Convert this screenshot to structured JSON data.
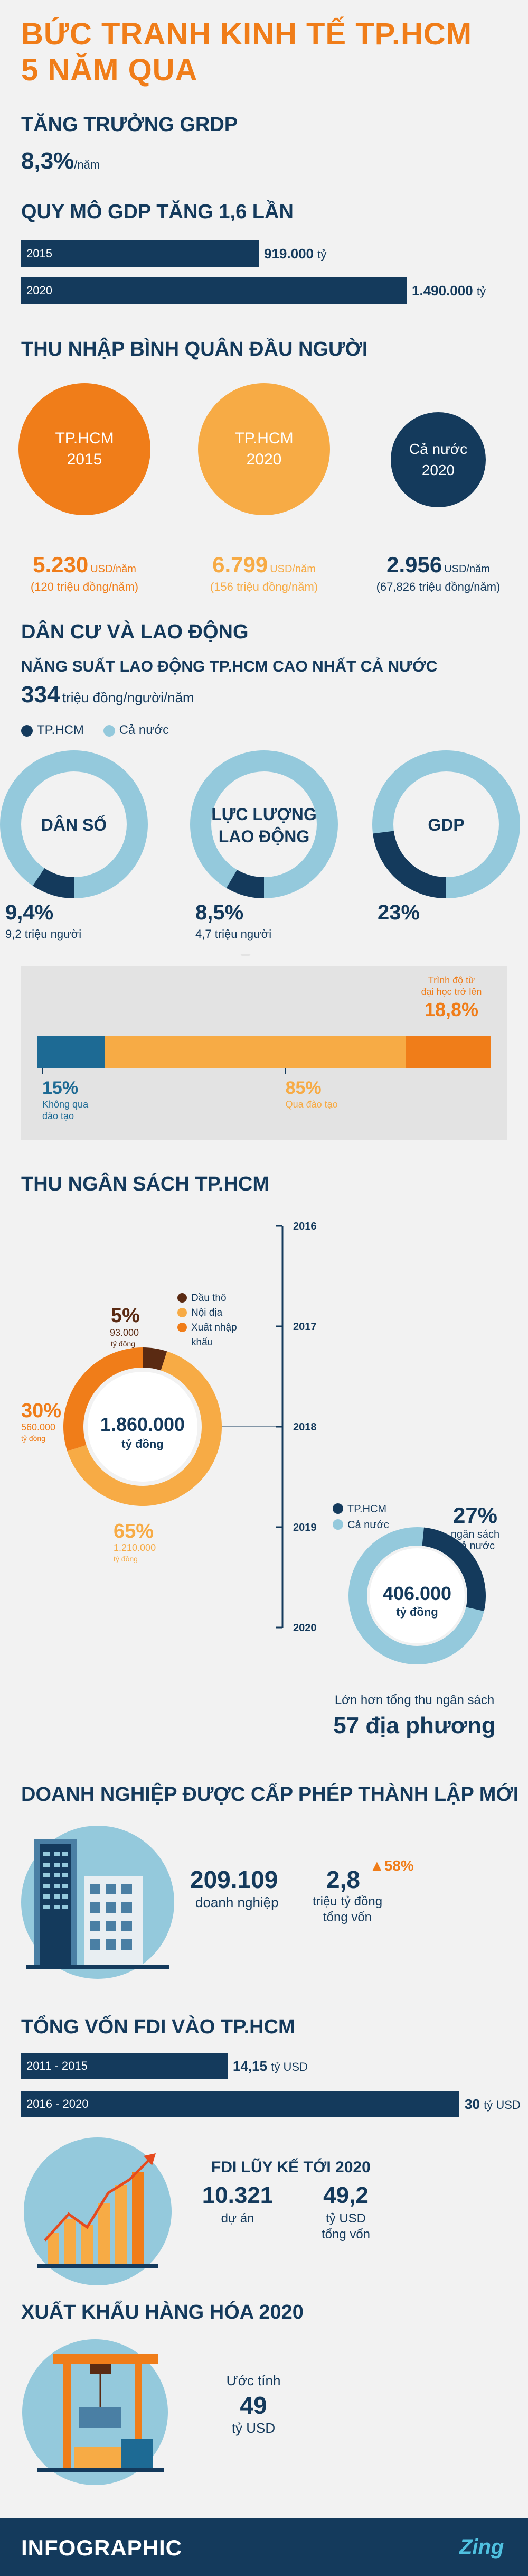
{
  "title_line1": "BỨC TRANH KINH TẾ TP.HCM",
  "title_line2": "5 NĂM QUA",
  "grdp": {
    "heading": "TĂNG TRƯỞNG GRDP",
    "value": "8,3%",
    "unit": "/năm"
  },
  "gdp_scale": {
    "heading": "QUY MÔ GDP TĂNG 1,6 LẦN",
    "chart_data": {
      "type": "bar",
      "orientation": "horizontal",
      "categories": [
        "2015",
        "2020"
      ],
      "values": [
        919000,
        1490000
      ],
      "value_labels": [
        "919.000",
        "1.490.000"
      ],
      "unit": "tỷ"
    }
  },
  "income": {
    "heading": "THU NHẬP BÌNH QUÂN ĐẦU NGƯỜI",
    "items": [
      {
        "label1": "TP.HCM",
        "label2": "2015",
        "value": "5.230",
        "unit": "USD/năm",
        "sub": "(120 triệu đồng/năm)",
        "color": "#f07d19",
        "value_color": "#f07d19"
      },
      {
        "label1": "TP.HCM",
        "label2": "2020",
        "value": "6.799",
        "unit": "USD/năm",
        "sub": "(156 triệu đồng/năm)",
        "color": "#f7ab45",
        "value_color": "#f7ab45"
      },
      {
        "label1": "Cả nước",
        "label2": "2020",
        "value": "2.956",
        "unit": "USD/năm",
        "sub": "(67,826 triệu đồng/năm)",
        "color": "#143a5c",
        "value_color": "#143a5c"
      }
    ]
  },
  "labor": {
    "heading": "DÂN CƯ VÀ LAO ĐỘNG",
    "subheading": "NĂNG SUẤT LAO ĐỘNG TP.HCM CAO NHẤT CẢ NƯỚC",
    "productivity_value": "334",
    "productivity_unit": "triệu đồng/người/năm",
    "legend_hcm": "TP.HCM",
    "legend_nation": "Cả nước",
    "colors": {
      "hcm": "#143a5c",
      "nation": "#94c9dc"
    },
    "chart_data": {
      "type": "pie",
      "charts": [
        {
          "label1": "DÂN SỐ",
          "label2": "",
          "hcm_share": 9.4,
          "value": "9,4%",
          "sub": "9,2 triệu người"
        },
        {
          "label1": "LỰC LƯỢNG",
          "label2": "LAO ĐỘNG",
          "hcm_share": 8.5,
          "value": "8,5%",
          "sub": "4,7 triệu người"
        },
        {
          "label1": "GDP",
          "label2": "",
          "hcm_share": 23,
          "value": "23%",
          "sub": ""
        }
      ]
    },
    "training": {
      "top_label1": "Trình độ từ",
      "top_label2": "đại học trở lên",
      "top_value": "18,8%",
      "chart_data": {
        "type": "bar",
        "stacked": true,
        "segments": [
          {
            "value": 15,
            "label": "15%",
            "desc1": "Không qua",
            "desc2": "đào tạo",
            "color": "#1d6a94"
          },
          {
            "value": 66.2,
            "label": "85%",
            "desc1": "Qua đào tạo",
            "desc2": "",
            "color": "#f7ab45"
          },
          {
            "value": 18.8,
            "label": "",
            "desc1": "",
            "desc2": "",
            "color": "#f07d19"
          }
        ]
      }
    }
  },
  "budget": {
    "heading": "THU NGÂN SÁCH TP.HCM",
    "years": [
      "2016",
      "2017",
      "2018",
      "2019",
      "2020"
    ],
    "chart_data": {
      "type": "pie",
      "total": "1.860.000",
      "total_unit": "tỷ đồng",
      "slices": [
        {
          "name": "Dầu thô",
          "share": 5,
          "label": "5%",
          "value": "93.000",
          "unit": "tỷ đồng",
          "color": "#5a2a12"
        },
        {
          "name": "Nội địa",
          "share": 65,
          "label": "65%",
          "value": "1.210.000",
          "unit": "tỷ đồng",
          "color": "#f7ab45"
        },
        {
          "name": "Xuất nhập khẩu",
          "share": 30,
          "label": "30%",
          "value": "560.000",
          "unit": "tỷ đồng",
          "color": "#f07d19"
        }
      ]
    },
    "legend_names": [
      "Dầu thô",
      "Nội địa",
      "Xuất nhập",
      "khẩu"
    ],
    "share_chart": {
      "legend_hcm": "TP.HCM",
      "legend_nation": "Cả nước",
      "share": 27,
      "share_label": "27%",
      "share_desc1": "ngân sách",
      "share_desc2": "cả nước",
      "total": "406.000",
      "total_unit": "tỷ đồng",
      "note": "Lớn hơn tổng thu ngân sách",
      "note_big": "57 địa phương"
    }
  },
  "enterprise": {
    "heading": "DOANH NGHIỆP ĐƯỢC CẤP PHÉP THÀNH LẬP MỚI",
    "count": "209.109",
    "count_label": "doanh nghiệp",
    "capital": "2,8",
    "capital_label1": "triệu tỷ đồng",
    "capital_label2": "tổng vốn",
    "growth": "58%"
  },
  "fdi": {
    "heading": "TỔNG VỐN FDI VÀO TP.HCM",
    "chart_data": {
      "type": "bar",
      "orientation": "horizontal",
      "categories": [
        "2011 - 2015",
        "2016 - 2020"
      ],
      "values": [
        14.15,
        30
      ],
      "value_labels": [
        "14,15",
        "30"
      ],
      "unit": "tỷ USD"
    },
    "accum_heading": "FDI LŨY KẾ TỚI 2020",
    "projects": "10.321",
    "projects_label": "dự án",
    "capital": "49,2",
    "capital_label1": "tỷ USD",
    "capital_label2": "tổng vốn"
  },
  "export": {
    "heading": "XUẤT KHẨU HÀNG HÓA 2020",
    "label": "Ước tính",
    "value": "49",
    "unit": "tỷ USD"
  },
  "footer": {
    "left": "INFOGRAPHIC",
    "right": "Zing"
  }
}
